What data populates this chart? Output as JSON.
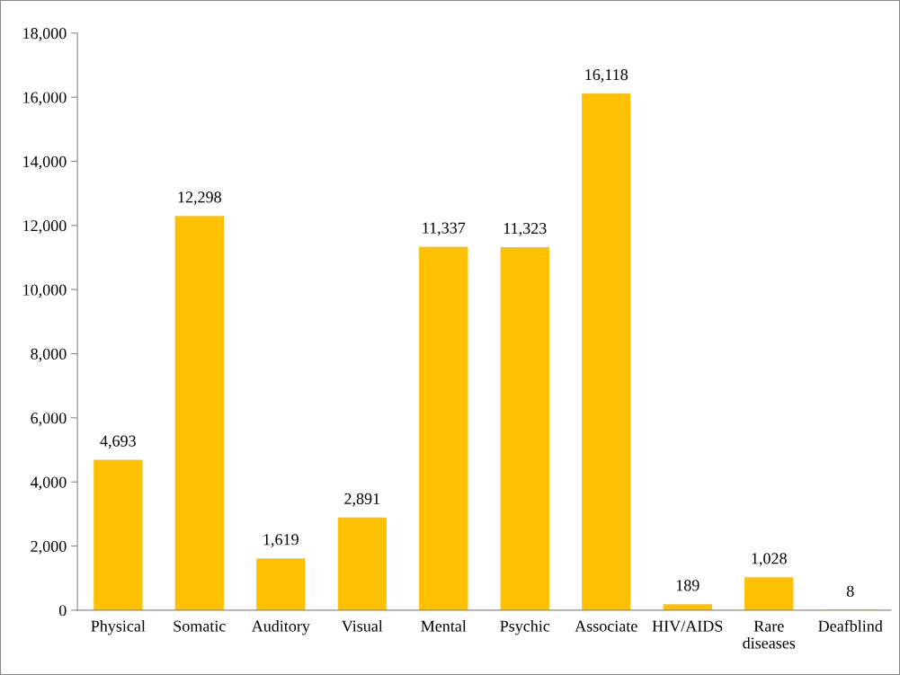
{
  "chart_data": {
    "type": "bar",
    "categories": [
      "Physical",
      "Somatic",
      "Auditory",
      "Visual",
      "Mental",
      "Psychic",
      "Associate",
      "HIV/AIDS",
      "Rare diseases",
      "Deafblind"
    ],
    "values": [
      4693,
      12298,
      1619,
      2891,
      11337,
      11323,
      16118,
      189,
      1028,
      8
    ],
    "value_labels": [
      "4,693",
      "12,298",
      "1,619",
      "2,891",
      "11,337",
      "11,323",
      "16,118",
      "189",
      "1,028",
      "8"
    ],
    "color": "#ffc000",
    "ylim": [
      0,
      18000
    ],
    "yticks": [
      0,
      {
        "value": 2000,
        "label": "2,000"
      },
      {
        "value": 4000,
        "label": "4,000"
      },
      {
        "value": 6000,
        "label": "6,000"
      },
      {
        "value": 8000,
        "label": "8,000"
      },
      {
        "value": 10000,
        "label": "10,000"
      },
      {
        "value": 12000,
        "label": "12,000"
      },
      {
        "value": 14000,
        "label": "14,000"
      },
      {
        "value": 16000,
        "label": "16,000"
      },
      {
        "value": 18000,
        "label": "18,000"
      }
    ],
    "grid": false,
    "legend": false
  }
}
